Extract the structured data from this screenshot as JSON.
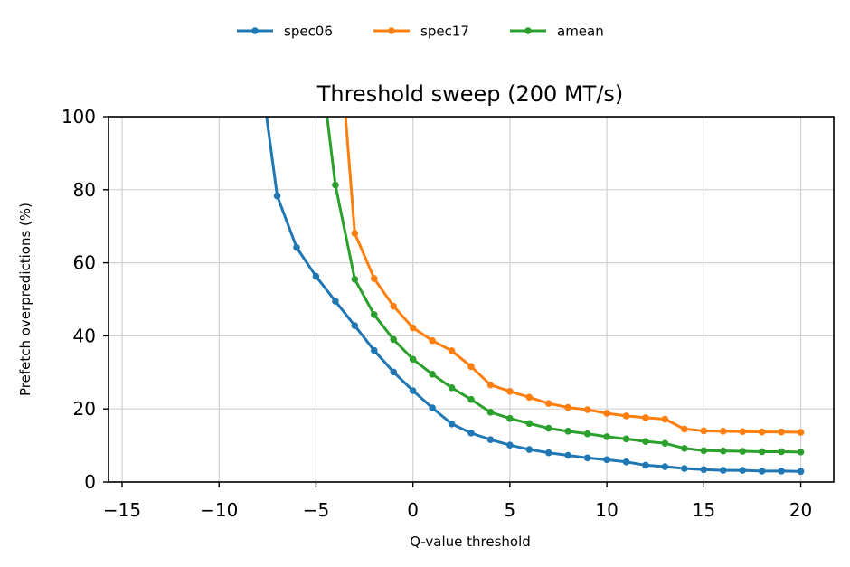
{
  "chart_data": {
    "type": "line",
    "title": "Threshold sweep (200 MT/s)",
    "xlabel": "Q-value threshold",
    "ylabel": "Prefetch overpredictions (%)",
    "xlim": [
      -15.7,
      21.7
    ],
    "ylim": [
      0,
      100
    ],
    "xticks": [
      -15,
      -10,
      -5,
      0,
      5,
      10,
      15,
      20
    ],
    "yticks": [
      0,
      20,
      40,
      60,
      80,
      100
    ],
    "xtick_labels": [
      "−15",
      "−10",
      "−5",
      "0",
      "5",
      "10",
      "15",
      "20"
    ],
    "ytick_labels": [
      "0",
      "20",
      "40",
      "60",
      "80",
      "100"
    ],
    "grid": true,
    "legend_position": "top-center",
    "series": [
      {
        "name": "spec06",
        "color": "#1f77b4",
        "x": [
          -8,
          -7,
          -6,
          -5,
          -4,
          -3,
          -2,
          -1,
          0,
          1,
          2,
          3,
          4,
          5,
          6,
          7,
          8,
          9,
          10,
          11,
          12,
          13,
          14,
          15,
          16,
          17,
          18,
          19,
          20
        ],
        "y": [
          118,
          78.3,
          64.2,
          56.3,
          49.5,
          42.8,
          36.0,
          30.1,
          25.0,
          20.3,
          15.9,
          13.4,
          11.6,
          10.1,
          8.9,
          8.0,
          7.3,
          6.6,
          6.1,
          5.5,
          4.6,
          4.2,
          3.7,
          3.4,
          3.2,
          3.2,
          3.0,
          3.0,
          2.9
        ],
        "marker_from_index": 1
      },
      {
        "name": "spec17",
        "color": "#ff7f0e",
        "x": [
          -4,
          -3,
          -2,
          -1,
          0,
          1,
          2,
          3,
          4,
          5,
          6,
          7,
          8,
          9,
          10,
          11,
          12,
          13,
          14,
          15,
          16,
          17,
          18,
          19,
          20
        ],
        "y": [
          135,
          68.1,
          55.7,
          48.1,
          42.2,
          38.7,
          35.9,
          31.6,
          26.6,
          24.8,
          23.2,
          21.5,
          20.4,
          19.8,
          18.8,
          18.1,
          17.6,
          17.2,
          14.5,
          14.0,
          13.9,
          13.8,
          13.7,
          13.7,
          13.6
        ],
        "marker_from_index": 1
      },
      {
        "name": "amean",
        "color": "#2ca02c",
        "x": [
          -5,
          -4,
          -3,
          -2,
          -1,
          0,
          1,
          2,
          3,
          4,
          5,
          6,
          7,
          8,
          9,
          10,
          11,
          12,
          13,
          14,
          15,
          16,
          17,
          18,
          19,
          20
        ],
        "y": [
          125,
          81.3,
          55.5,
          45.8,
          39.0,
          33.6,
          29.5,
          25.8,
          22.6,
          19.1,
          17.4,
          16.0,
          14.7,
          13.9,
          13.2,
          12.4,
          11.8,
          11.1,
          10.6,
          9.2,
          8.6,
          8.5,
          8.4,
          8.3,
          8.3,
          8.2
        ],
        "marker_from_index": 1
      }
    ]
  }
}
